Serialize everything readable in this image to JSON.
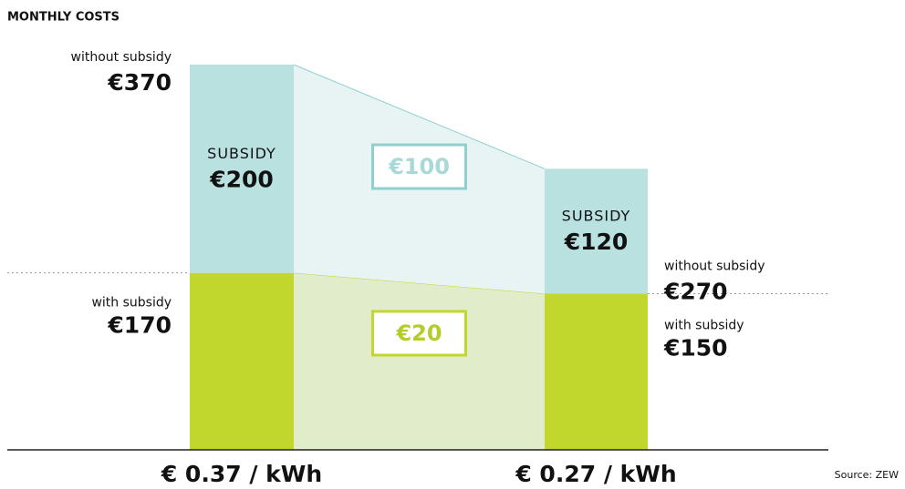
{
  "chart_data": {
    "type": "stacked-bar",
    "title": "MONTHLY COSTS",
    "source": "Source: ZEW",
    "categories": [
      "€ 0.37 / kWh",
      "€ 0.27 / kWh"
    ],
    "series": [
      {
        "name": "with subsidy",
        "color": "#c1d72e",
        "values": [
          170,
          150
        ],
        "value_labels": [
          "€170",
          "€150"
        ],
        "difference": {
          "value": 20,
          "label": "€20"
        }
      },
      {
        "name": "SUBSIDY",
        "color": "#b9e1e0",
        "values": [
          200,
          120
        ],
        "value_labels": [
          "€200",
          "€120"
        ],
        "difference": {
          "value": 100,
          "label": "€100"
        }
      }
    ],
    "totals": {
      "name": "without subsidy",
      "values": [
        370,
        270
      ],
      "value_labels": [
        "€370",
        "€270"
      ]
    },
    "ylim": [
      0,
      370
    ]
  }
}
